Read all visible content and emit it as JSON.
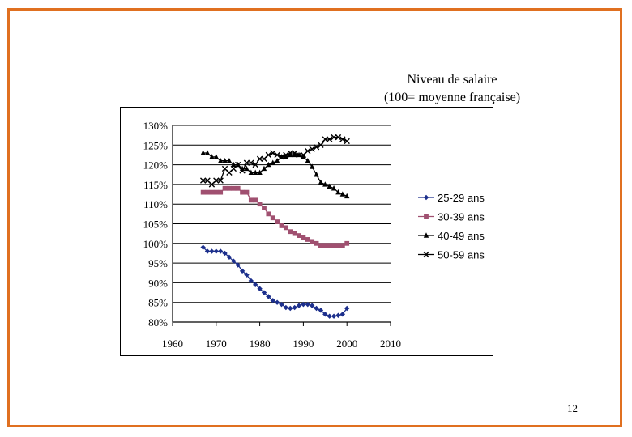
{
  "chart_data": {
    "type": "line",
    "title": "Niveau de salaire",
    "subtitle": "(100= moyenne française)",
    "xlabel": "",
    "ylabel": "",
    "xlim": [
      1960,
      2010
    ],
    "ylim": [
      80,
      130
    ],
    "x_ticks": [
      1960,
      1970,
      1980,
      1990,
      2000,
      2010
    ],
    "y_ticks": [
      80,
      85,
      90,
      95,
      100,
      105,
      110,
      115,
      120,
      125,
      130
    ],
    "y_tick_labels": [
      "80%",
      "85%",
      "90%",
      "95%",
      "100%",
      "105%",
      "110%",
      "115%",
      "120%",
      "125%",
      "130%"
    ],
    "grid": "horizontal",
    "legend_position": "right",
    "series": [
      {
        "name": "25-29 ans",
        "marker": "diamond",
        "color": "#1c2f8c",
        "x": [
          1967,
          1968,
          1969,
          1970,
          1971,
          1972,
          1973,
          1974,
          1975,
          1976,
          1977,
          1978,
          1979,
          1980,
          1981,
          1982,
          1983,
          1984,
          1985,
          1986,
          1987,
          1988,
          1989,
          1990,
          1991,
          1992,
          1993,
          1994,
          1995,
          1996,
          1997,
          1998,
          1999,
          2000
        ],
        "y": [
          99,
          98,
          98,
          98,
          98,
          97.5,
          96.5,
          95.5,
          94.5,
          93,
          92,
          90.5,
          89.5,
          88.5,
          87.5,
          86.5,
          85.5,
          85,
          84.5,
          83.7,
          83.5,
          83.7,
          84.2,
          84.5,
          84.5,
          84.2,
          83.5,
          83,
          82,
          81.5,
          81.5,
          81.7,
          82,
          83.5
        ]
      },
      {
        "name": "30-39 ans",
        "marker": "square",
        "color": "#a05070",
        "x": [
          1967,
          1968,
          1969,
          1970,
          1971,
          1972,
          1973,
          1974,
          1975,
          1976,
          1977,
          1978,
          1979,
          1980,
          1981,
          1982,
          1983,
          1984,
          1985,
          1986,
          1987,
          1988,
          1989,
          1990,
          1991,
          1992,
          1993,
          1994,
          1995,
          1996,
          1997,
          1998,
          1999,
          2000
        ],
        "y": [
          113,
          113,
          113,
          113,
          113,
          114,
          114,
          114,
          114,
          113,
          113,
          111,
          111,
          110,
          109,
          107.5,
          106.5,
          105.5,
          104.5,
          104,
          103,
          102.5,
          102,
          101.5,
          101,
          100.5,
          100,
          99.5,
          99.5,
          99.5,
          99.5,
          99.5,
          99.5,
          100
        ]
      },
      {
        "name": "40-49 ans",
        "marker": "triangle",
        "color": "#000000",
        "x": [
          1967,
          1968,
          1969,
          1970,
          1971,
          1972,
          1973,
          1974,
          1975,
          1976,
          1977,
          1978,
          1979,
          1980,
          1981,
          1982,
          1983,
          1984,
          1985,
          1986,
          1987,
          1988,
          1989,
          1990,
          1991,
          1992,
          1993,
          1994,
          1995,
          1996,
          1997,
          1998,
          1999,
          2000
        ],
        "y": [
          123,
          123,
          122,
          122,
          121,
          121,
          121,
          120,
          120,
          119,
          119,
          118,
          118,
          118,
          119,
          120,
          120.5,
          121,
          122,
          122,
          122.5,
          122.5,
          122.5,
          122,
          121,
          119.5,
          117.5,
          115.5,
          115,
          114.5,
          114,
          113,
          112.5,
          112
        ]
      },
      {
        "name": "50-59 ans",
        "marker": "cross",
        "color": "#000000",
        "x": [
          1967,
          1968,
          1969,
          1970,
          1971,
          1972,
          1973,
          1974,
          1975,
          1976,
          1977,
          1978,
          1979,
          1980,
          1981,
          1982,
          1983,
          1984,
          1985,
          1986,
          1987,
          1988,
          1989,
          1990,
          1991,
          1992,
          1993,
          1994,
          1995,
          1996,
          1997,
          1998,
          1999,
          2000
        ],
        "y": [
          116,
          116,
          115,
          116,
          116,
          119,
          118,
          119,
          120,
          118.5,
          120.5,
          120.5,
          120,
          121.5,
          121.5,
          122.5,
          123,
          122.5,
          122,
          122.5,
          123,
          123,
          122.5,
          122.5,
          123.5,
          124,
          124.5,
          125,
          126.5,
          126.5,
          127,
          127,
          126.5,
          126
        ]
      }
    ]
  },
  "page": {
    "number": "12"
  }
}
